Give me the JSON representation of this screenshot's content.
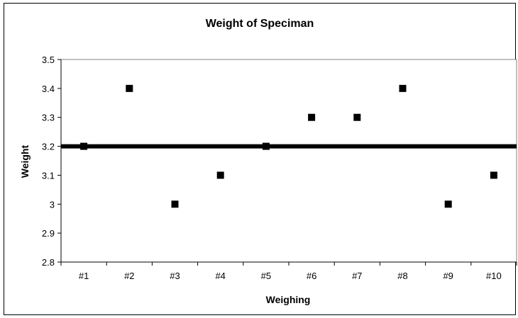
{
  "chart_data": {
    "type": "scatter",
    "title": "Weight of Speciman",
    "xlabel": "Weighing",
    "ylabel": "Weight",
    "categories": [
      "#1",
      "#2",
      "#3",
      "#4",
      "#5",
      "#6",
      "#7",
      "#8",
      "#9",
      "#10"
    ],
    "series": [
      {
        "values": [
          3.2,
          3.4,
          3.0,
          3.1,
          3.2,
          3.3,
          3.3,
          3.4,
          3.0,
          3.1
        ],
        "marker": "square",
        "color": "#000000"
      }
    ],
    "reference_line": {
      "value": 3.2,
      "color": "#000000"
    },
    "ylim": [
      2.8,
      3.5
    ],
    "y_ticks": [
      "2.8",
      "2.9",
      "3",
      "3.1",
      "3.2",
      "3.3",
      "3.4",
      "3.5"
    ],
    "grid": false,
    "legend": "none"
  }
}
